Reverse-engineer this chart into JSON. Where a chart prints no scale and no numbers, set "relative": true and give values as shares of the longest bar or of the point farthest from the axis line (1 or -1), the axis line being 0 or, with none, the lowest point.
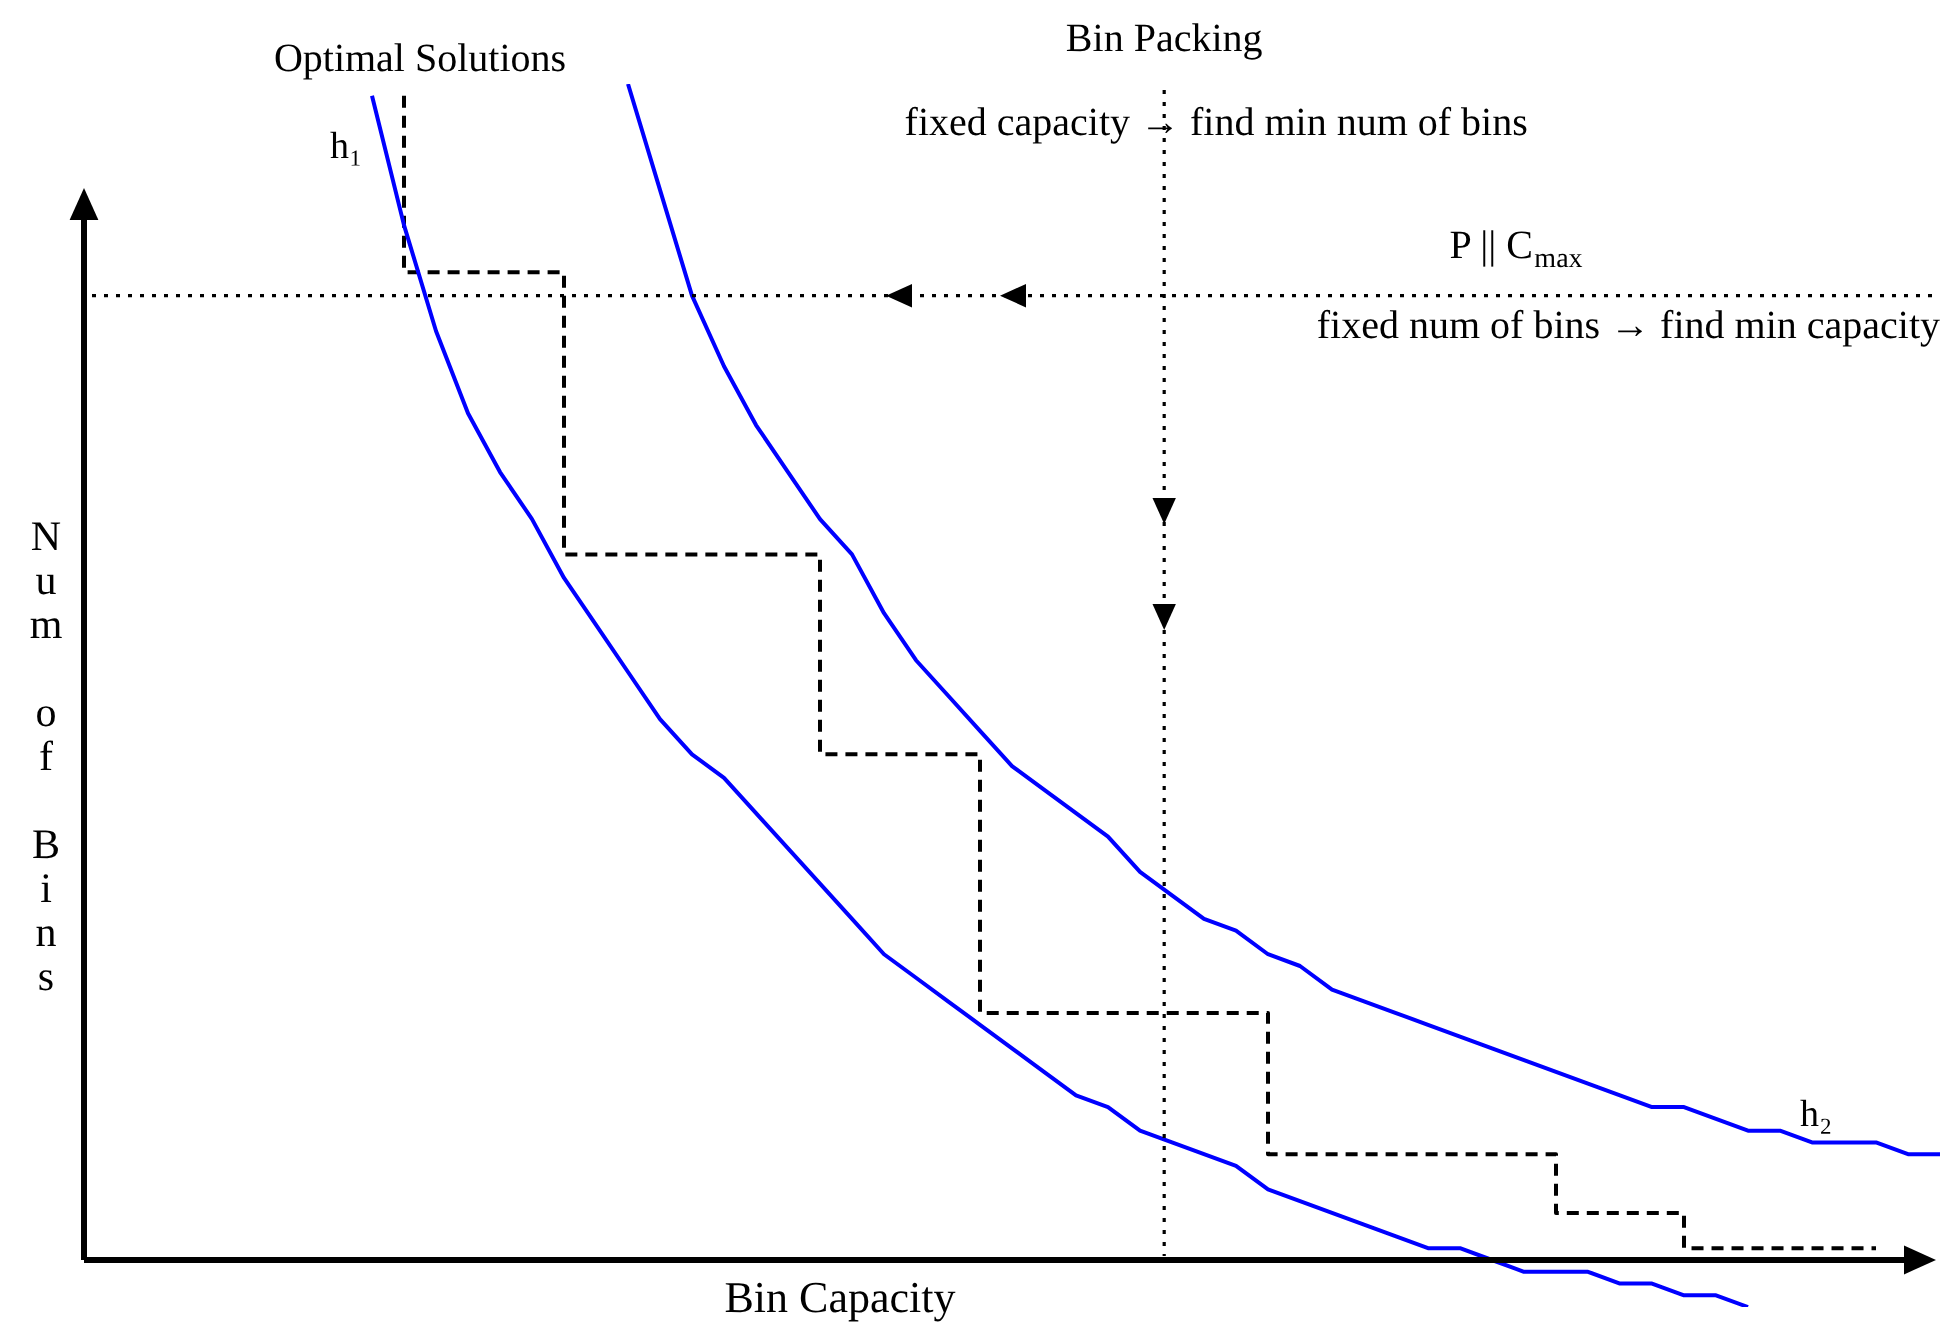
{
  "chart_data": {
    "type": "line",
    "xlabel": "Bin Capacity",
    "ylabel": "Num of Bins",
    "relative": true,
    "tick_labels": false,
    "legend": false,
    "marker": "none",
    "categories": [
      null,
      null,
      null,
      null,
      null,
      null,
      null,
      null,
      null,
      null,
      null,
      null,
      null,
      null,
      null,
      null,
      null,
      null,
      null,
      null,
      null,
      null,
      null,
      null,
      null,
      null,
      null,
      null,
      null,
      null,
      null,
      null,
      null,
      null,
      null,
      null,
      null,
      null,
      null,
      null,
      null,
      null,
      null,
      null,
      null,
      null,
      null,
      null,
      null,
      null,
      null,
      null,
      null,
      null,
      null,
      null,
      null,
      null,
      null
    ],
    "series": [
      {
        "name": "h₁",
        "type": "line",
        "color": "#0000ff",
        "line_style": "solid",
        "values": [
          null,
          null,
          null,
          null,
          null,
          null,
          null,
          null,
          null,
          0.99,
          0.88,
          0.79,
          0.72,
          0.67,
          0.63,
          0.58,
          0.54,
          0.5,
          0.46,
          0.43,
          0.41,
          0.38,
          0.35,
          0.32,
          0.29,
          0.26,
          0.24,
          0.22,
          0.2,
          0.18,
          0.16,
          0.14,
          0.13,
          0.11,
          0.1,
          0.09,
          0.08,
          0.06,
          0.05,
          0.04,
          0.03,
          0.02,
          0.01,
          0.01,
          0,
          -0.01,
          -0.01,
          -0.01,
          -0.02,
          -0.02,
          -0.03,
          -0.03,
          -0.04,
          null,
          null,
          null,
          null,
          null,
          null
        ]
      },
      {
        "name": "h₂",
        "type": "line",
        "color": "#0000ff",
        "line_style": "solid",
        "values": [
          null,
          null,
          null,
          null,
          null,
          null,
          null,
          null,
          null,
          null,
          null,
          null,
          null,
          null,
          null,
          null,
          null,
          1,
          0.91,
          0.82,
          0.76,
          0.71,
          0.67,
          0.63,
          0.6,
          0.55,
          0.51,
          0.48,
          0.45,
          0.42,
          0.4,
          0.38,
          0.36,
          0.33,
          0.31,
          0.29,
          0.28,
          0.26,
          0.25,
          0.23,
          0.22,
          0.21,
          0.2,
          0.19,
          0.18,
          0.17,
          0.16,
          0.15,
          0.14,
          0.13,
          0.13,
          0.12,
          0.11,
          0.11,
          0.1,
          0.1,
          0.1,
          0.09,
          0.09
        ]
      },
      {
        "type": "step",
        "color": "#000000",
        "line_style": "dashed",
        "values": [
          null,
          null,
          null,
          null,
          null,
          null,
          null,
          null,
          null,
          null,
          0.99,
          0.84,
          0.84,
          0.84,
          0.84,
          0.84,
          0.6,
          0.6,
          0.6,
          0.6,
          0.6,
          0.6,
          0.6,
          0.6,
          0.43,
          0.43,
          0.43,
          0.43,
          0.43,
          0.21,
          0.21,
          0.21,
          0.21,
          0.21,
          0.21,
          0.21,
          0.21,
          0.21,
          0.09,
          0.09,
          0.09,
          0.09,
          0.09,
          0.09,
          0.09,
          0.09,
          0.09,
          0.04,
          0.04,
          0.04,
          0.04,
          0.01,
          0.01,
          0.01,
          0.01,
          0.01,
          0.01,
          null,
          null
        ]
      }
    ],
    "ref_lines": [
      {
        "axis": "y",
        "value": 0.82,
        "label": "P || C$_{max}$",
        "color": "#000000",
        "line_style": "dotted"
      }
    ],
    "annotations": [
      "Optimal Solutions",
      "Bin Packing",
      "fixed capacity → find min num of bins",
      "fixed num of bins → find min capacity"
    ]
  }
}
